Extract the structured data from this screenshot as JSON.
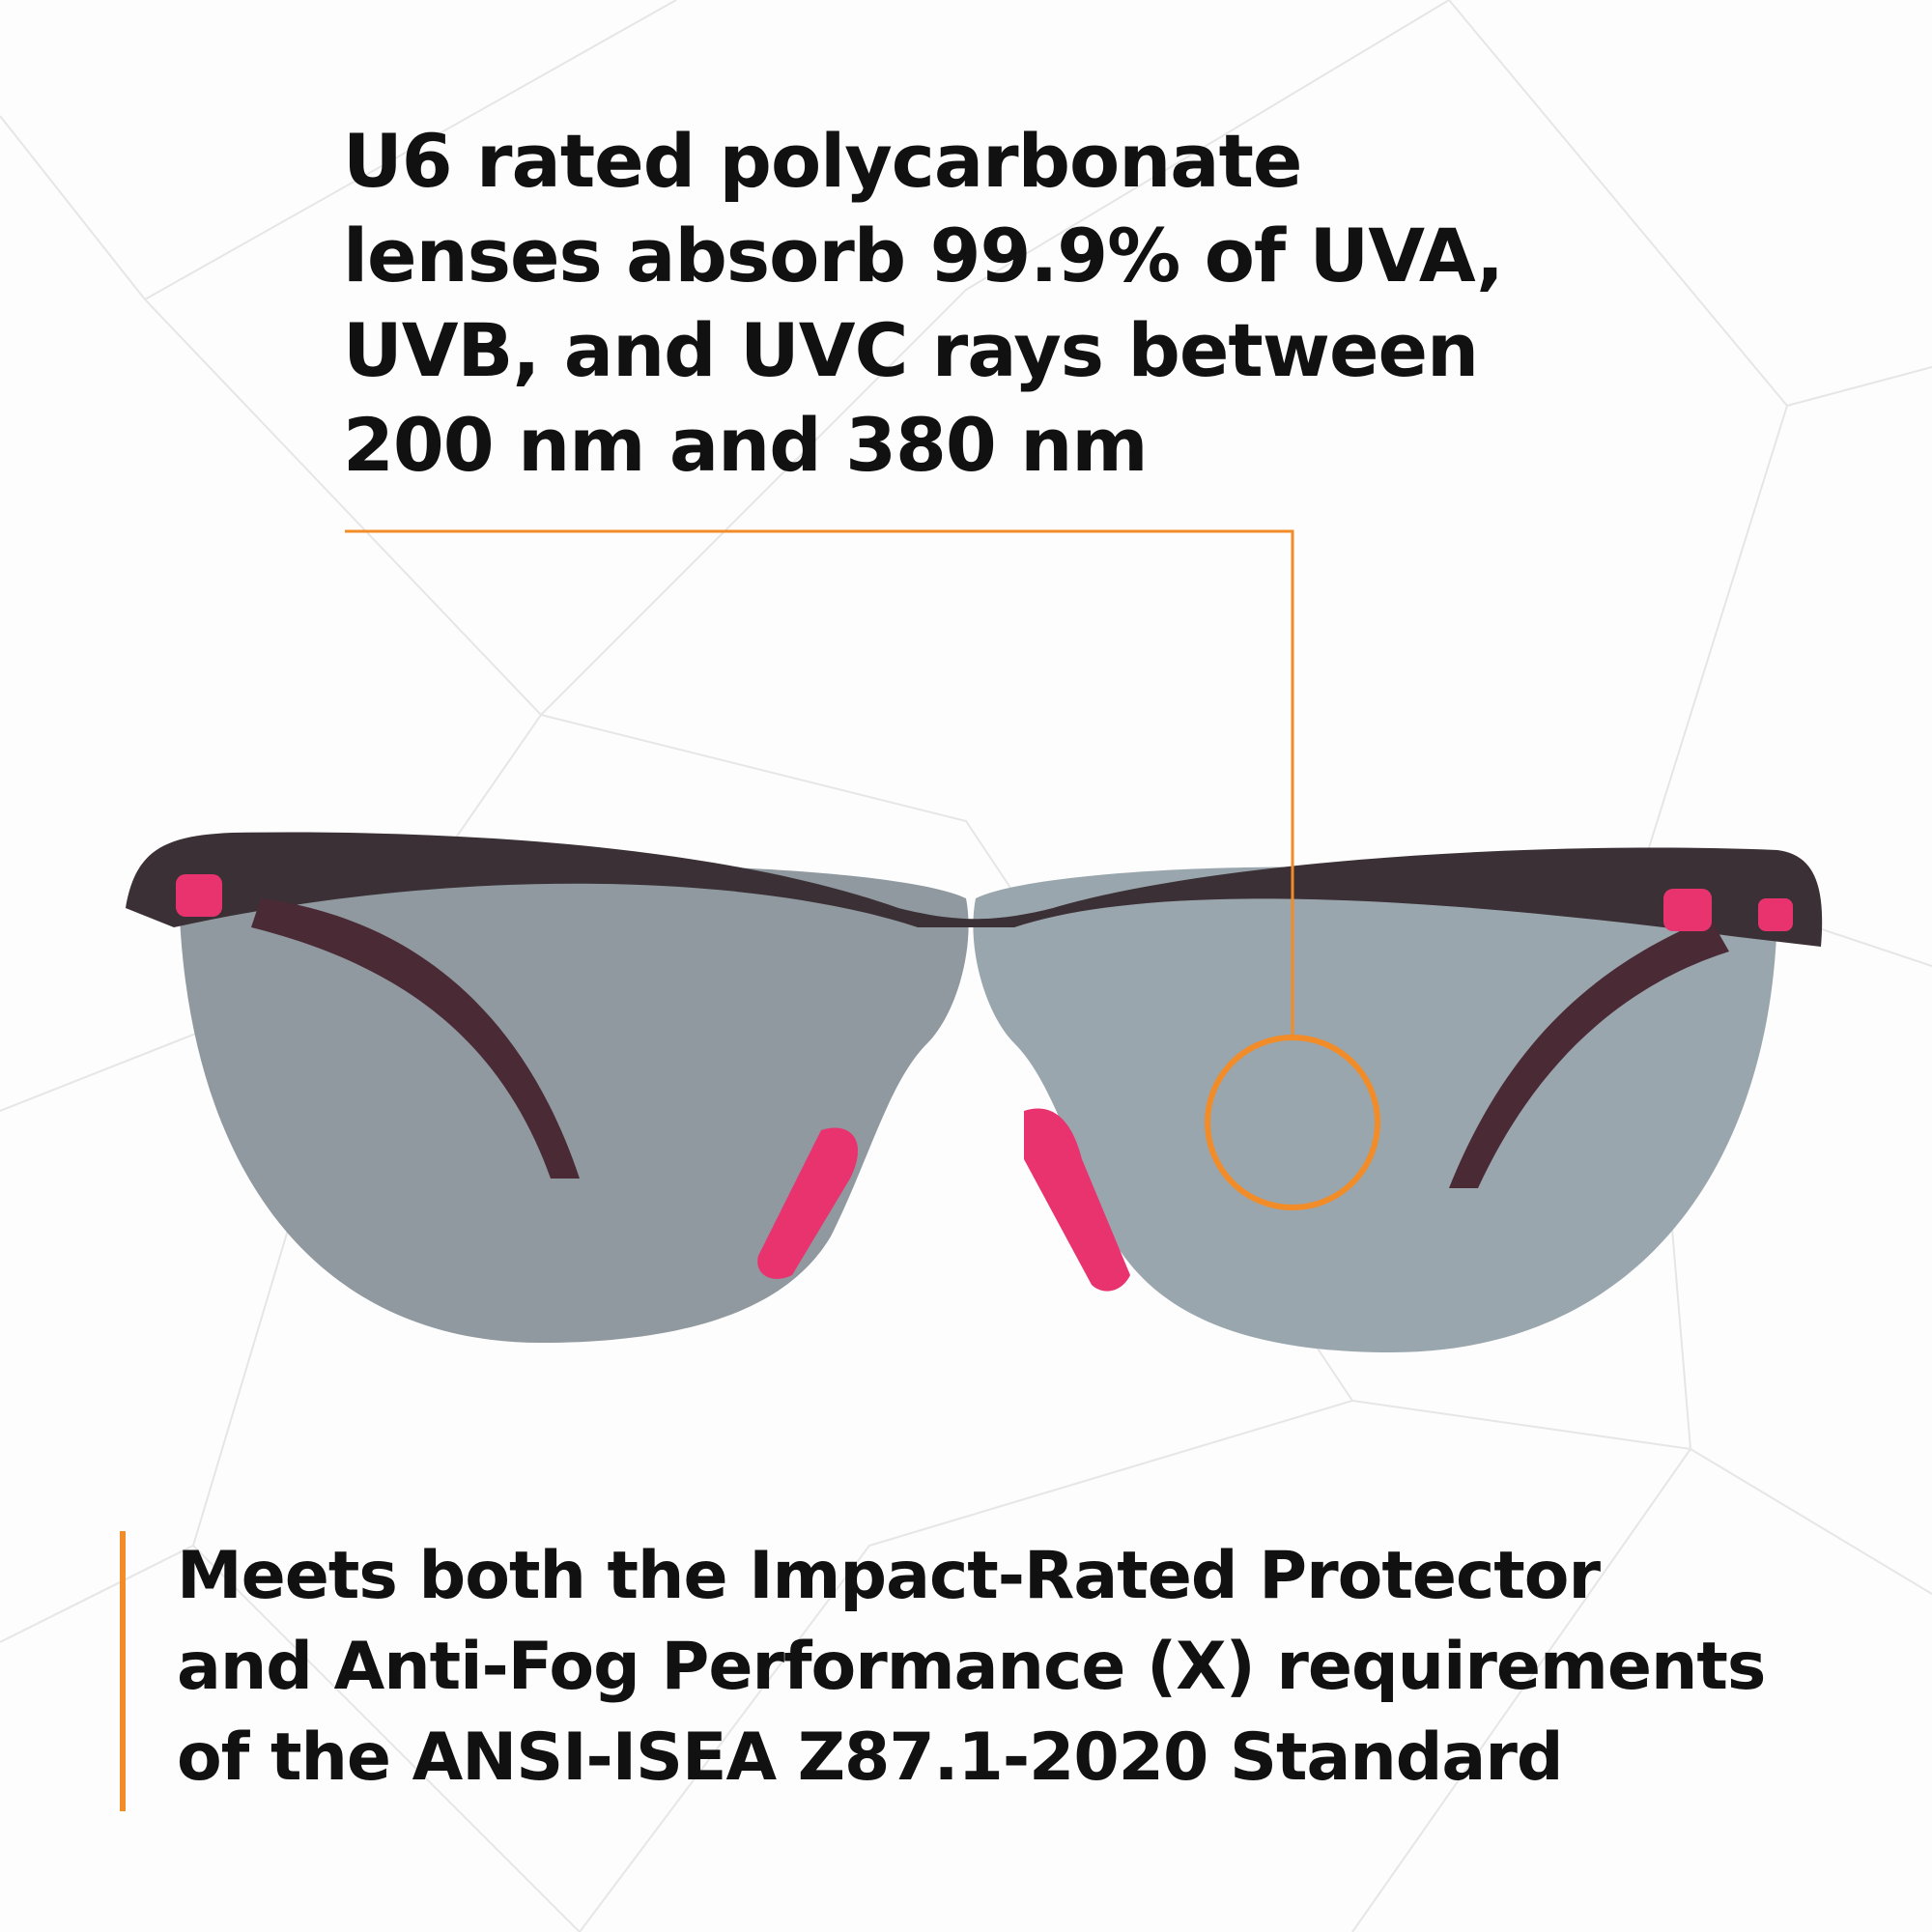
{
  "headline": {
    "lines": [
      "U6 rated polycarbonate",
      "lenses absorb 99.9% of UVA,",
      "UVB, and UVC rays between",
      "200 nm and 380 nm"
    ]
  },
  "footer": {
    "lines": [
      "Meets both the Impact-Rated Protector",
      "and Anti-Fog Performance (X) requirements",
      "of the ANSI-ISEA Z87.1-2020 Standard"
    ]
  },
  "colors": {
    "accent": "#f28c28",
    "lens": "#9aa6ad",
    "frame_accent": "#e8336f",
    "text": "#111111"
  },
  "icons": [
    "safety-glasses-image",
    "callout-circle"
  ]
}
